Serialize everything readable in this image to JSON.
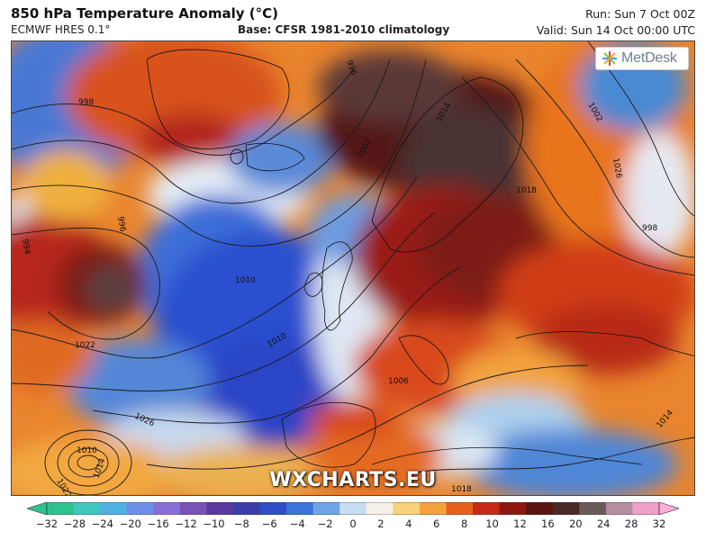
{
  "header": {
    "title": "850 hPa Temperature Anomaly (°C)",
    "subtitle": "ECMWF HRES 0.1°",
    "base": "Base: CFSR 1981-2010 climatology",
    "run": "Run: Sun 7 Oct 00Z",
    "valid": "Valid: Sun 14 Oct 00:00 UTC"
  },
  "logo": {
    "text": "MetDesk",
    "icon": "metdesk-star-icon"
  },
  "watermark": "WXCHARTS.EU",
  "colorbar": {
    "ticks": [
      "−32",
      "−28",
      "−24",
      "−20",
      "−16",
      "−12",
      "−10",
      "−8",
      "−6",
      "−4",
      "−2",
      "0",
      "2",
      "4",
      "6",
      "8",
      "10",
      "12",
      "16",
      "20",
      "24",
      "28",
      "32"
    ],
    "colors": [
      "#2ec28f",
      "#3fc8c0",
      "#4fb2e0",
      "#6f8ee8",
      "#8a6fd8",
      "#7a52b8",
      "#5b3aa0",
      "#3b3ea8",
      "#2f4ec8",
      "#3a74d8",
      "#6fa4e6",
      "#c8dcf2",
      "#f6f1e8",
      "#f7d27a",
      "#f5a23a",
      "#e8601c",
      "#c7281a",
      "#8e1712",
      "#5a1410",
      "#4a2a28",
      "#6a5a58",
      "#b48ea0",
      "#f0a0c8"
    ],
    "arrow_left_color": "#2ec28f",
    "arrow_right_color": "#ffb0d8"
  },
  "isobar_labels": [
    "998",
    "996",
    "1002",
    "1010",
    "1022",
    "1026",
    "1010",
    "1014",
    "1018",
    "1022",
    "1026",
    "1014",
    "1018",
    "1010",
    "1006",
    "1014",
    "1002",
    "996",
    "994",
    "998"
  ]
}
